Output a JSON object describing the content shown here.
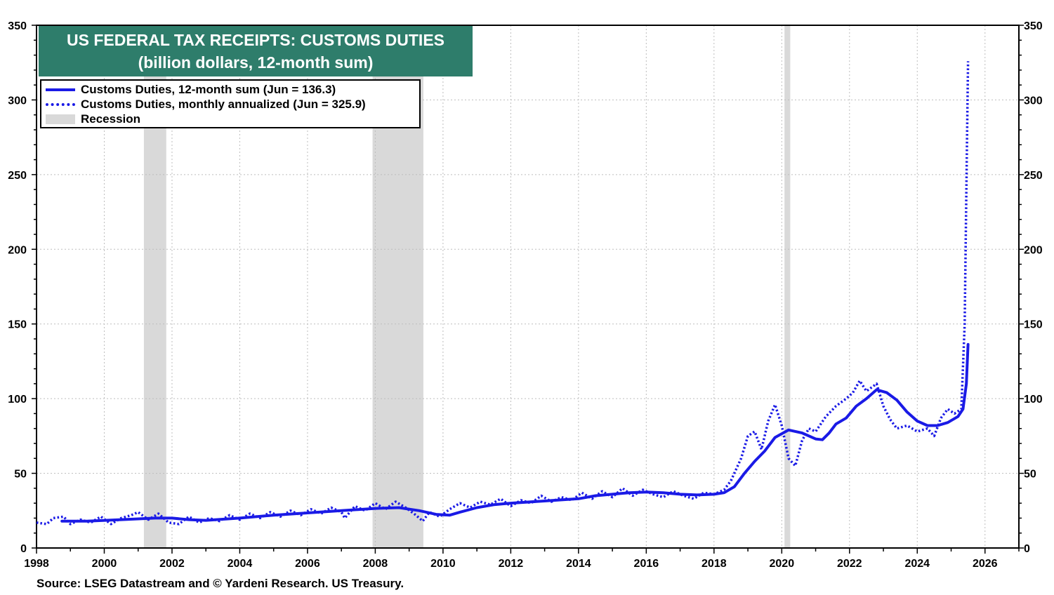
{
  "title": {
    "line1": "US FEDERAL TAX RECEIPTS: CUSTOMS DUTIES",
    "line2": "(billion dollars, 12-month sum)"
  },
  "legend": {
    "solid": "Customs Duties, 12-month sum (Jun = 136.3)",
    "dotted": "Customs Duties, monthly annualized (Jun = 325.9)",
    "recession": "Recession"
  },
  "source": "Source: LSEG Datastream and © Yardeni Research. US Treasury.",
  "colors": {
    "series": "#1a1ae6",
    "recession": "#d9d9d9",
    "title_bg": "#2e7d6b"
  },
  "chart_data": {
    "type": "line",
    "xlim": [
      1998,
      2027
    ],
    "ylim": [
      0,
      350
    ],
    "x_ticks": [
      "1998",
      "2000",
      "2002",
      "2004",
      "2006",
      "2008",
      "2010",
      "2012",
      "2014",
      "2016",
      "2018",
      "2020",
      "2022",
      "2024",
      "2026"
    ],
    "y_ticks": [
      "0",
      "50",
      "100",
      "150",
      "200",
      "250",
      "300",
      "350"
    ],
    "grid": true,
    "legend_position": "top-left",
    "recessions": [
      [
        2001.17,
        2001.83
      ],
      [
        2007.92,
        2009.42
      ],
      [
        2020.08,
        2020.25
      ]
    ],
    "series": [
      {
        "name": "Customs Duties, 12-month sum (Jun = 136.3)",
        "style": "solid",
        "points": [
          [
            1998.75,
            18
          ],
          [
            1999.5,
            18
          ],
          [
            2000.5,
            19
          ],
          [
            2001.5,
            20
          ],
          [
            2002.0,
            20
          ],
          [
            2002.5,
            19
          ],
          [
            2003.0,
            18.5
          ],
          [
            2004.0,
            20
          ],
          [
            2005.0,
            22
          ],
          [
            2006.0,
            23.5
          ],
          [
            2007.0,
            25
          ],
          [
            2008.0,
            26.5
          ],
          [
            2008.7,
            27
          ],
          [
            2009.3,
            25
          ],
          [
            2009.8,
            22.5
          ],
          [
            2010.2,
            22
          ],
          [
            2010.5,
            24
          ],
          [
            2011.0,
            27
          ],
          [
            2011.5,
            29
          ],
          [
            2012.0,
            30
          ],
          [
            2013.0,
            31.5
          ],
          [
            2014.0,
            33
          ],
          [
            2014.5,
            35
          ],
          [
            2015.0,
            36
          ],
          [
            2015.5,
            37
          ],
          [
            2016.0,
            37.5
          ],
          [
            2016.5,
            37
          ],
          [
            2017.0,
            36
          ],
          [
            2017.5,
            35.5
          ],
          [
            2018.0,
            36
          ],
          [
            2018.3,
            37
          ],
          [
            2018.6,
            41
          ],
          [
            2018.9,
            50
          ],
          [
            2019.2,
            58
          ],
          [
            2019.5,
            65
          ],
          [
            2019.8,
            74
          ],
          [
            2020.2,
            79
          ],
          [
            2020.6,
            77
          ],
          [
            2021.0,
            73
          ],
          [
            2021.2,
            72.5
          ],
          [
            2021.4,
            77
          ],
          [
            2021.6,
            83
          ],
          [
            2021.9,
            87
          ],
          [
            2022.2,
            95
          ],
          [
            2022.5,
            100
          ],
          [
            2022.8,
            106
          ],
          [
            2023.1,
            104
          ],
          [
            2023.4,
            99
          ],
          [
            2023.7,
            91
          ],
          [
            2024.0,
            85
          ],
          [
            2024.3,
            82
          ],
          [
            2024.6,
            82
          ],
          [
            2024.9,
            84
          ],
          [
            2025.2,
            88
          ],
          [
            2025.35,
            93
          ],
          [
            2025.45,
            110
          ],
          [
            2025.5,
            136.3
          ]
        ]
      },
      {
        "name": "Customs Duties, monthly annualized (Jun = 325.9)",
        "style": "dotted",
        "points": [
          [
            1998.0,
            17
          ],
          [
            1998.3,
            16
          ],
          [
            1998.5,
            20
          ],
          [
            1998.8,
            21
          ],
          [
            1999.0,
            16
          ],
          [
            1999.3,
            19
          ],
          [
            1999.6,
            17
          ],
          [
            1999.9,
            21
          ],
          [
            2000.2,
            16
          ],
          [
            2000.5,
            20
          ],
          [
            2000.8,
            22
          ],
          [
            2001.0,
            24
          ],
          [
            2001.3,
            19
          ],
          [
            2001.6,
            23
          ],
          [
            2001.9,
            17
          ],
          [
            2002.2,
            16
          ],
          [
            2002.5,
            21
          ],
          [
            2002.8,
            17
          ],
          [
            2003.1,
            20
          ],
          [
            2003.4,
            18
          ],
          [
            2003.7,
            22
          ],
          [
            2004.0,
            19
          ],
          [
            2004.3,
            23
          ],
          [
            2004.6,
            20
          ],
          [
            2004.9,
            24
          ],
          [
            2005.2,
            21
          ],
          [
            2005.5,
            25
          ],
          [
            2005.8,
            22
          ],
          [
            2006.1,
            26
          ],
          [
            2006.4,
            23
          ],
          [
            2006.7,
            27
          ],
          [
            2007.0,
            24
          ],
          [
            2007.1,
            20
          ],
          [
            2007.4,
            28
          ],
          [
            2007.7,
            25
          ],
          [
            2008.0,
            30
          ],
          [
            2008.3,
            26
          ],
          [
            2008.6,
            31
          ],
          [
            2008.9,
            27
          ],
          [
            2009.2,
            22
          ],
          [
            2009.4,
            18
          ],
          [
            2009.6,
            24
          ],
          [
            2009.9,
            21
          ],
          [
            2010.2,
            26
          ],
          [
            2010.5,
            30
          ],
          [
            2010.8,
            27
          ],
          [
            2011.1,
            31
          ],
          [
            2011.4,
            29
          ],
          [
            2011.7,
            33
          ],
          [
            2012.0,
            28
          ],
          [
            2012.3,
            32
          ],
          [
            2012.6,
            30
          ],
          [
            2012.9,
            35
          ],
          [
            2013.2,
            31
          ],
          [
            2013.5,
            34
          ],
          [
            2013.8,
            32
          ],
          [
            2014.1,
            37
          ],
          [
            2014.4,
            33
          ],
          [
            2014.7,
            38
          ],
          [
            2015.0,
            34
          ],
          [
            2015.3,
            40
          ],
          [
            2015.6,
            35
          ],
          [
            2015.9,
            39
          ],
          [
            2016.2,
            36
          ],
          [
            2016.5,
            34
          ],
          [
            2016.8,
            38
          ],
          [
            2017.1,
            35
          ],
          [
            2017.4,
            33
          ],
          [
            2017.7,
            37
          ],
          [
            2018.0,
            36
          ],
          [
            2018.3,
            39
          ],
          [
            2018.5,
            45
          ],
          [
            2018.8,
            60
          ],
          [
            2019.0,
            75
          ],
          [
            2019.2,
            78
          ],
          [
            2019.4,
            66
          ],
          [
            2019.6,
            85
          ],
          [
            2019.8,
            96
          ],
          [
            2020.0,
            82
          ],
          [
            2020.2,
            60
          ],
          [
            2020.4,
            55
          ],
          [
            2020.6,
            72
          ],
          [
            2020.8,
            80
          ],
          [
            2021.0,
            78
          ],
          [
            2021.3,
            88
          ],
          [
            2021.6,
            95
          ],
          [
            2021.9,
            100
          ],
          [
            2022.1,
            104
          ],
          [
            2022.3,
            112
          ],
          [
            2022.5,
            105
          ],
          [
            2022.8,
            110
          ],
          [
            2023.0,
            95
          ],
          [
            2023.2,
            86
          ],
          [
            2023.4,
            80
          ],
          [
            2023.7,
            82
          ],
          [
            2024.0,
            78
          ],
          [
            2024.3,
            80
          ],
          [
            2024.5,
            75
          ],
          [
            2024.7,
            87
          ],
          [
            2024.9,
            93
          ],
          [
            2025.1,
            90
          ],
          [
            2025.3,
            93
          ],
          [
            2025.4,
            150
          ],
          [
            2025.45,
            240
          ],
          [
            2025.5,
            325.9
          ]
        ]
      }
    ]
  }
}
